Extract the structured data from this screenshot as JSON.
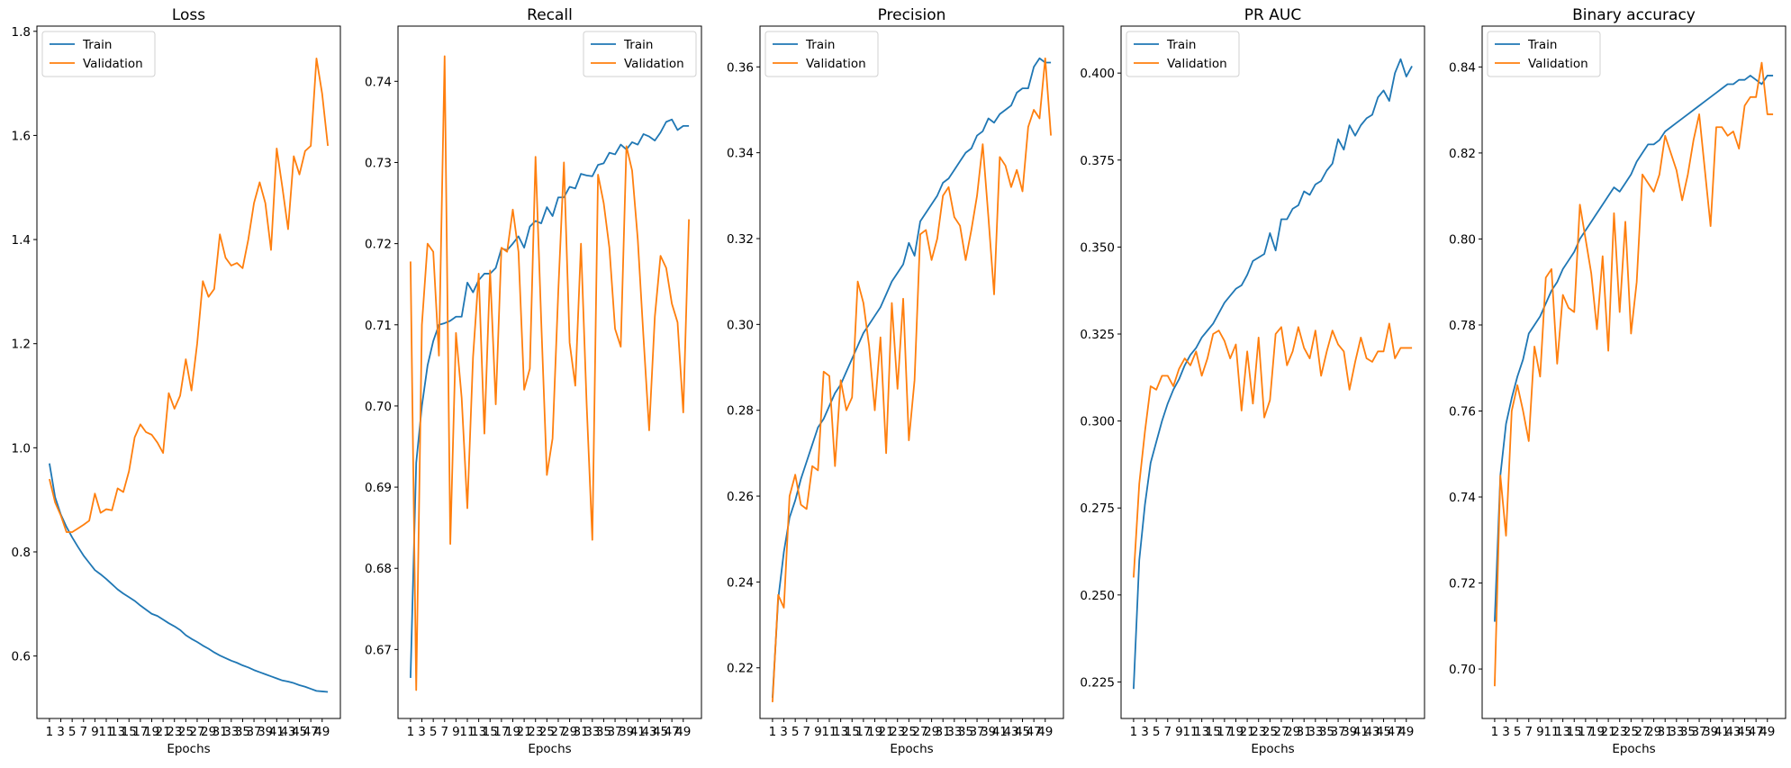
{
  "colors": {
    "train": "#1f77b4",
    "validation": "#ff7f0e"
  },
  "chart_data": [
    {
      "type": "line",
      "title": "Loss",
      "xlabel": "Epochs",
      "ylabel": "",
      "x": [
        1,
        2,
        3,
        4,
        5,
        6,
        7,
        8,
        9,
        10,
        11,
        12,
        13,
        14,
        15,
        16,
        17,
        18,
        19,
        20,
        21,
        22,
        23,
        24,
        25,
        26,
        27,
        28,
        29,
        30,
        31,
        32,
        33,
        34,
        35,
        36,
        37,
        38,
        39,
        40,
        41,
        42,
        43,
        44,
        45,
        46,
        47,
        48,
        49,
        50
      ],
      "xticks": [
        "1",
        "3",
        "5",
        "7",
        "9",
        "11",
        "13",
        "15",
        "17",
        "19",
        "21",
        "23",
        "25",
        "27",
        "29",
        "31",
        "33",
        "35",
        "37",
        "39",
        "41",
        "43",
        "45",
        "47",
        "49"
      ],
      "ylim": [
        0.48,
        1.81
      ],
      "yticks": [
        "0.6",
        "0.8",
        "1.0",
        "1.2",
        "1.4",
        "1.6",
        "1.8"
      ],
      "legend_position": "top-left",
      "series": [
        {
          "name": "Train",
          "values": [
            0.97,
            0.905,
            0.872,
            0.848,
            0.828,
            0.81,
            0.793,
            0.779,
            0.765,
            0.757,
            0.748,
            0.738,
            0.728,
            0.72,
            0.713,
            0.706,
            0.697,
            0.689,
            0.681,
            0.677,
            0.67,
            0.663,
            0.657,
            0.65,
            0.64,
            0.633,
            0.627,
            0.62,
            0.614,
            0.607,
            0.601,
            0.596,
            0.591,
            0.587,
            0.582,
            0.578,
            0.573,
            0.569,
            0.565,
            0.561,
            0.557,
            0.553,
            0.551,
            0.548,
            0.544,
            0.541,
            0.537,
            0.533,
            0.532,
            0.531
          ]
        },
        {
          "name": "Validation",
          "values": [
            0.94,
            0.895,
            0.87,
            0.838,
            0.838,
            0.845,
            0.852,
            0.86,
            0.912,
            0.875,
            0.882,
            0.88,
            0.922,
            0.915,
            0.955,
            1.02,
            1.045,
            1.03,
            1.025,
            1.01,
            0.99,
            1.105,
            1.075,
            1.1,
            1.17,
            1.11,
            1.2,
            1.32,
            1.29,
            1.305,
            1.41,
            1.365,
            1.35,
            1.355,
            1.345,
            1.4,
            1.47,
            1.51,
            1.47,
            1.38,
            1.575,
            1.5,
            1.42,
            1.56,
            1.525,
            1.57,
            1.58,
            1.748,
            1.68,
            1.58
          ]
        }
      ]
    },
    {
      "type": "line",
      "title": "Recall",
      "xlabel": "Epochs",
      "ylabel": "",
      "x": [
        1,
        2,
        3,
        4,
        5,
        6,
        7,
        8,
        9,
        10,
        11,
        12,
        13,
        14,
        15,
        16,
        17,
        18,
        19,
        20,
        21,
        22,
        23,
        24,
        25,
        26,
        27,
        28,
        29,
        30,
        31,
        32,
        33,
        34,
        35,
        36,
        37,
        38,
        39,
        40,
        41,
        42,
        43,
        44,
        45,
        46,
        47,
        48,
        49,
        50
      ],
      "xticks": [
        "1",
        "3",
        "5",
        "7",
        "9",
        "11",
        "13",
        "15",
        "17",
        "19",
        "21",
        "23",
        "25",
        "27",
        "29",
        "31",
        "33",
        "35",
        "37",
        "39",
        "41",
        "43",
        "45",
        "47",
        "49"
      ],
      "ylim": [
        0.6615,
        0.7468
      ],
      "yticks": [
        "0.67",
        "0.68",
        "0.69",
        "0.70",
        "0.71",
        "0.72",
        "0.73",
        "0.74"
      ],
      "legend_position": "top-right",
      "series": [
        {
          "name": "Train",
          "values": [
            0.6665,
            0.693,
            0.7,
            0.705,
            0.708,
            0.71,
            0.7102,
            0.7105,
            0.711,
            0.711,
            0.7152,
            0.714,
            0.7155,
            0.7163,
            0.7163,
            0.717,
            0.7194,
            0.7192,
            0.72,
            0.7209,
            0.7195,
            0.7221,
            0.7228,
            0.7225,
            0.7245,
            0.7234,
            0.7257,
            0.7257,
            0.727,
            0.7268,
            0.7286,
            0.7284,
            0.7283,
            0.7297,
            0.7299,
            0.7312,
            0.731,
            0.7322,
            0.7316,
            0.7325,
            0.7322,
            0.7335,
            0.7332,
            0.7327,
            0.7337,
            0.735,
            0.7353,
            0.734,
            0.7345,
            0.7345
          ]
        },
        {
          "name": "Validation",
          "values": [
            0.7178,
            0.665,
            0.71,
            0.72,
            0.719,
            0.7062,
            0.7431,
            0.683,
            0.709,
            0.701,
            0.6874,
            0.706,
            0.7163,
            0.6966,
            0.7167,
            0.7002,
            0.7195,
            0.719,
            0.7242,
            0.719,
            0.702,
            0.7046,
            0.7307,
            0.7105,
            0.6915,
            0.696,
            0.714,
            0.73,
            0.7078,
            0.7025,
            0.72,
            0.7002,
            0.6835,
            0.7285,
            0.725,
            0.7195,
            0.7095,
            0.7073,
            0.732,
            0.729,
            0.7205,
            0.7085,
            0.697,
            0.711,
            0.7185,
            0.717,
            0.7126,
            0.7103,
            0.6992,
            0.723
          ]
        }
      ]
    },
    {
      "type": "line",
      "title": "Precision",
      "xlabel": "Epochs",
      "ylabel": "",
      "x": [
        1,
        2,
        3,
        4,
        5,
        6,
        7,
        8,
        9,
        10,
        11,
        12,
        13,
        14,
        15,
        16,
        17,
        18,
        19,
        20,
        21,
        22,
        23,
        24,
        25,
        26,
        27,
        28,
        29,
        30,
        31,
        32,
        33,
        34,
        35,
        36,
        37,
        38,
        39,
        40,
        41,
        42,
        43,
        44,
        45,
        46,
        47,
        48,
        49,
        50
      ],
      "xticks": [
        "1",
        "3",
        "5",
        "7",
        "9",
        "11",
        "13",
        "15",
        "17",
        "19",
        "21",
        "23",
        "25",
        "27",
        "29",
        "31",
        "33",
        "35",
        "37",
        "39",
        "41",
        "43",
        "45",
        "47",
        "49"
      ],
      "ylim": [
        0.2082,
        0.3695
      ],
      "yticks": [
        "0.22",
        "0.24",
        "0.26",
        "0.28",
        "0.30",
        "0.32",
        "0.34",
        "0.36"
      ],
      "legend_position": "top-left",
      "series": [
        {
          "name": "Train",
          "values": [
            0.213,
            0.236,
            0.247,
            0.255,
            0.259,
            0.264,
            0.268,
            0.272,
            0.276,
            0.278,
            0.281,
            0.284,
            0.286,
            0.289,
            0.292,
            0.295,
            0.298,
            0.3,
            0.302,
            0.304,
            0.307,
            0.31,
            0.312,
            0.314,
            0.319,
            0.316,
            0.324,
            0.326,
            0.328,
            0.33,
            0.333,
            0.334,
            0.336,
            0.338,
            0.34,
            0.341,
            0.344,
            0.345,
            0.348,
            0.347,
            0.349,
            0.35,
            0.351,
            0.354,
            0.355,
            0.355,
            0.36,
            0.362,
            0.361,
            0.361
          ]
        },
        {
          "name": "Validation",
          "values": [
            0.212,
            0.237,
            0.234,
            0.26,
            0.265,
            0.258,
            0.257,
            0.267,
            0.266,
            0.289,
            0.288,
            0.267,
            0.287,
            0.28,
            0.283,
            0.31,
            0.305,
            0.295,
            0.28,
            0.297,
            0.27,
            0.305,
            0.285,
            0.306,
            0.273,
            0.287,
            0.321,
            0.322,
            0.315,
            0.32,
            0.33,
            0.332,
            0.325,
            0.323,
            0.315,
            0.322,
            0.33,
            0.342,
            0.325,
            0.307,
            0.339,
            0.337,
            0.332,
            0.336,
            0.331,
            0.346,
            0.35,
            0.348,
            0.362,
            0.344
          ]
        }
      ]
    },
    {
      "type": "line",
      "title": "PR AUC",
      "xlabel": "Epochs",
      "ylabel": "",
      "x": [
        1,
        2,
        3,
        4,
        5,
        6,
        7,
        8,
        9,
        10,
        11,
        12,
        13,
        14,
        15,
        16,
        17,
        18,
        19,
        20,
        21,
        22,
        23,
        24,
        25,
        26,
        27,
        28,
        29,
        30,
        31,
        32,
        33,
        34,
        35,
        36,
        37,
        38,
        39,
        40,
        41,
        42,
        43,
        44,
        45,
        46,
        47,
        48,
        49,
        50
      ],
      "xticks": [
        "1",
        "3",
        "5",
        "7",
        "9",
        "11",
        "13",
        "15",
        "17",
        "19",
        "21",
        "23",
        "25",
        "27",
        "29",
        "31",
        "33",
        "35",
        "37",
        "39",
        "41",
        "43",
        "45",
        "47",
        "49"
      ],
      "ylim": [
        0.2145,
        0.4135
      ],
      "yticks": [
        "0.225",
        "0.250",
        "0.275",
        "0.300",
        "0.325",
        "0.350",
        "0.375",
        "0.400"
      ],
      "legend_position": "top-left",
      "series": [
        {
          "name": "Train",
          "values": [
            0.223,
            0.26,
            0.276,
            0.288,
            0.294,
            0.3,
            0.305,
            0.309,
            0.312,
            0.316,
            0.319,
            0.321,
            0.324,
            0.326,
            0.328,
            0.331,
            0.334,
            0.336,
            0.338,
            0.339,
            0.342,
            0.346,
            0.347,
            0.348,
            0.354,
            0.349,
            0.358,
            0.358,
            0.361,
            0.362,
            0.366,
            0.365,
            0.368,
            0.369,
            0.372,
            0.374,
            0.381,
            0.378,
            0.385,
            0.382,
            0.385,
            0.387,
            0.388,
            0.393,
            0.395,
            0.392,
            0.4,
            0.404,
            0.399,
            0.402
          ]
        },
        {
          "name": "Validation",
          "values": [
            0.255,
            0.282,
            0.297,
            0.31,
            0.309,
            0.313,
            0.313,
            0.31,
            0.315,
            0.318,
            0.316,
            0.32,
            0.313,
            0.318,
            0.325,
            0.326,
            0.323,
            0.318,
            0.322,
            0.303,
            0.32,
            0.305,
            0.324,
            0.301,
            0.306,
            0.325,
            0.327,
            0.316,
            0.32,
            0.327,
            0.321,
            0.318,
            0.326,
            0.313,
            0.32,
            0.326,
            0.322,
            0.32,
            0.309,
            0.317,
            0.324,
            0.318,
            0.317,
            0.32,
            0.32,
            0.328,
            0.318,
            0.321,
            0.321,
            0.321
          ]
        }
      ]
    },
    {
      "type": "line",
      "title": "Binary accuracy",
      "xlabel": "Epochs",
      "ylabel": "",
      "x": [
        1,
        2,
        3,
        4,
        5,
        6,
        7,
        8,
        9,
        10,
        11,
        12,
        13,
        14,
        15,
        16,
        17,
        18,
        19,
        20,
        21,
        22,
        23,
        24,
        25,
        26,
        27,
        28,
        29,
        30,
        31,
        32,
        33,
        34,
        35,
        36,
        37,
        38,
        39,
        40,
        41,
        42,
        43,
        44,
        45,
        46,
        47,
        48,
        49,
        50
      ],
      "xticks": [
        "1",
        "3",
        "5",
        "7",
        "9",
        "11",
        "13",
        "15",
        "17",
        "19",
        "21",
        "23",
        "25",
        "27",
        "29",
        "31",
        "33",
        "35",
        "37",
        "39",
        "41",
        "43",
        "45",
        "47",
        "49"
      ],
      "ylim": [
        0.6885,
        0.8495
      ],
      "yticks": [
        "0.70",
        "0.72",
        "0.74",
        "0.76",
        "0.78",
        "0.80",
        "0.82",
        "0.84"
      ],
      "legend_position": "top-left",
      "series": [
        {
          "name": "Train",
          "values": [
            0.711,
            0.745,
            0.757,
            0.763,
            0.768,
            0.772,
            0.778,
            0.78,
            0.782,
            0.785,
            0.788,
            0.79,
            0.793,
            0.795,
            0.797,
            0.8,
            0.802,
            0.804,
            0.806,
            0.808,
            0.81,
            0.812,
            0.811,
            0.813,
            0.815,
            0.818,
            0.82,
            0.822,
            0.822,
            0.823,
            0.825,
            0.826,
            0.827,
            0.828,
            0.829,
            0.83,
            0.831,
            0.832,
            0.833,
            0.834,
            0.835,
            0.836,
            0.836,
            0.837,
            0.837,
            0.838,
            0.837,
            0.836,
            0.838,
            0.838
          ]
        },
        {
          "name": "Validation",
          "values": [
            0.696,
            0.745,
            0.731,
            0.76,
            0.766,
            0.76,
            0.753,
            0.775,
            0.768,
            0.791,
            0.793,
            0.771,
            0.787,
            0.784,
            0.783,
            0.808,
            0.8,
            0.792,
            0.779,
            0.796,
            0.774,
            0.806,
            0.783,
            0.804,
            0.778,
            0.79,
            0.815,
            0.813,
            0.811,
            0.815,
            0.824,
            0.82,
            0.816,
            0.809,
            0.815,
            0.823,
            0.829,
            0.816,
            0.803,
            0.826,
            0.826,
            0.824,
            0.825,
            0.821,
            0.831,
            0.833,
            0.833,
            0.841,
            0.829,
            0.829
          ]
        }
      ]
    }
  ]
}
